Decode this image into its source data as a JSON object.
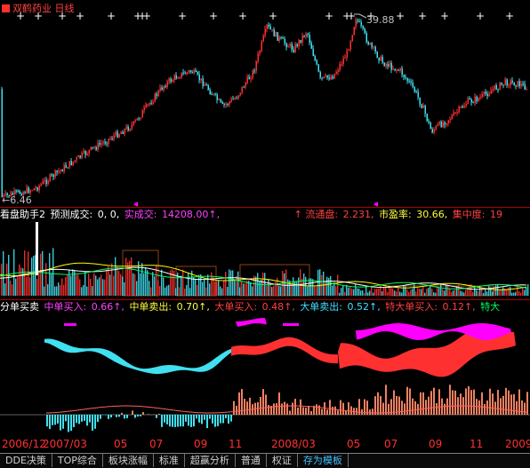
{
  "window": {
    "title": "双鹤药业 日线"
  },
  "price_panel": {
    "high_label": "39.88",
    "low_label": "6.46",
    "hint_marker": "←"
  },
  "volume_panel": {
    "indicator_name": "看盘助手2",
    "forecast_label": "预测成交:",
    "forecast_value": "0, 0,",
    "actual_label": "实成交:",
    "actual_value": "14208.00↑,",
    "float_label": "↑  流通盘:",
    "float_value": "2.231,",
    "pe_label": "市盈率:",
    "pe_value": "30.66,",
    "conc_label": "集中度:",
    "conc_value": "19"
  },
  "flow_panel": {
    "indicator_name": "分单买卖",
    "mid_buy_label": "中单买入:",
    "mid_buy_value": "0.66↑,",
    "mid_sell_label": "中单卖出:",
    "mid_sell_value": "0.70↑,",
    "big_buy_label": "大单买入:",
    "big_buy_value": "0.48↑,",
    "big_sell_label": "大单卖出:",
    "big_sell_value": "0.52↑,",
    "xl_buy_label": "特大单买入:",
    "xl_buy_value": "0.12↑,",
    "xl_sell_label": "特大"
  },
  "time_axis": {
    "ticks": [
      "2006/12",
      "2007/03",
      "05",
      "07",
      "09",
      "11",
      "2008/03",
      "05",
      "07",
      "09",
      "11",
      "2009"
    ]
  },
  "tabs": [
    {
      "label": "DDE决策"
    },
    {
      "label": "TOP综合"
    },
    {
      "label": "板块涨幅"
    },
    {
      "label": "标准"
    },
    {
      "label": "超赢分析"
    },
    {
      "label": "普通"
    },
    {
      "label": "权证"
    },
    {
      "label": "存为模板"
    }
  ],
  "colors": {
    "up": "#ff3030",
    "down": "#40e0f0",
    "volume_box": "#8b4513",
    "magenta": "#ff00ff",
    "yellow": "#ffff00",
    "green": "#00ff60",
    "salmon": "#f08060",
    "axis_red": "#ff3030",
    "tab_active": "#40c0ff"
  }
}
